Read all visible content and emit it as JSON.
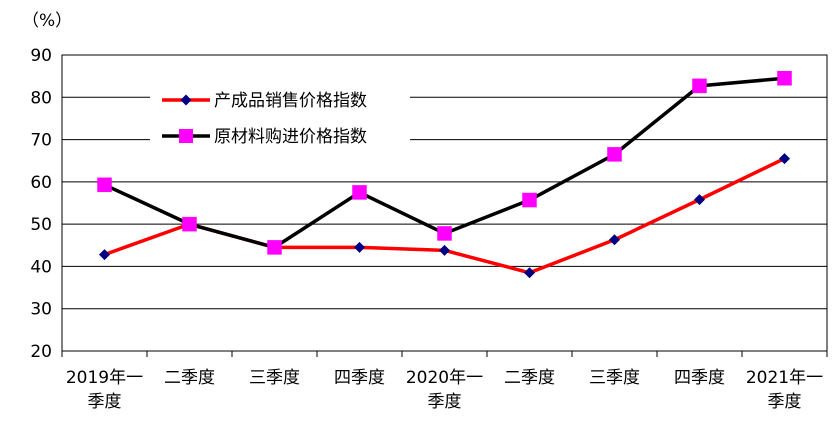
{
  "chart_data": {
    "type": "line",
    "unit_label": "（%）",
    "categories": [
      [
        "2019年一",
        "季度"
      ],
      [
        "二季度"
      ],
      [
        "三季度"
      ],
      [
        "四季度"
      ],
      [
        "2020年一",
        "季度"
      ],
      [
        "二季度"
      ],
      [
        "三季度"
      ],
      [
        "四季度"
      ],
      [
        "2021年一",
        "季度"
      ]
    ],
    "ylim": [
      20,
      90
    ],
    "yticks": [
      20,
      30,
      40,
      50,
      60,
      70,
      80,
      90
    ],
    "grid": true,
    "legend_position": "top-left",
    "series": [
      {
        "name": "产成品销售价格指数",
        "color": "#ff0000",
        "marker": "diamond",
        "marker_color": "#000080",
        "values": [
          42.8,
          50.0,
          44.5,
          44.5,
          43.8,
          38.5,
          46.3,
          55.8,
          65.5
        ]
      },
      {
        "name": "原材料购进价格指数",
        "color": "#000000",
        "marker": "square",
        "marker_color": "#ff00ff",
        "values": [
          59.3,
          50.0,
          44.5,
          57.5,
          47.8,
          55.7,
          66.5,
          82.7,
          84.5
        ]
      }
    ]
  }
}
